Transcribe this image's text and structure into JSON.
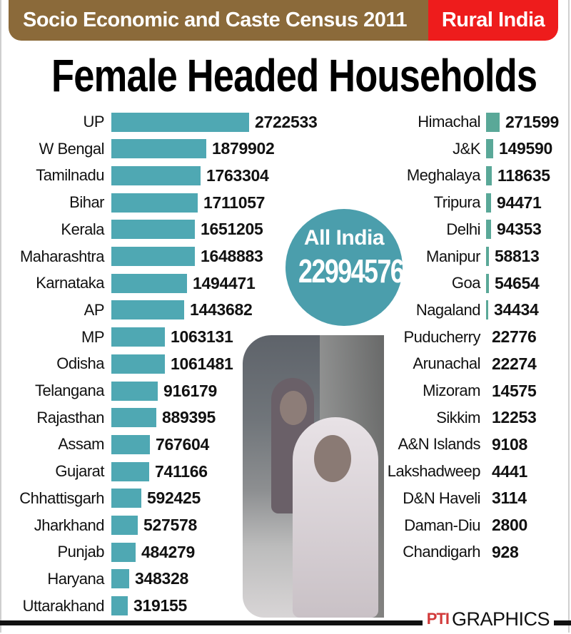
{
  "header": {
    "banner_left": "Socio Economic and Caste Census 2011",
    "banner_right": "Rural India",
    "title": "Female Headed Households"
  },
  "all_india": {
    "label": "All India",
    "value": "22994576"
  },
  "footer": {
    "logo": "PTI",
    "label": "GRAPHICS"
  },
  "colors": {
    "banner_brown": "#8b6a3a",
    "banner_red": "#ee1c1c",
    "bar_left": "#4fa8b3",
    "bar_right": "#5aa898",
    "circle": "#4b9eac"
  },
  "chart_data": {
    "type": "bar",
    "title": "Female Headed Households",
    "subtitle": "Socio Economic and Caste Census 2011 - Rural India",
    "xlabel": "",
    "ylabel": "",
    "orientation": "horizontal",
    "total": {
      "label": "All India",
      "value": 22994576
    },
    "categories": [
      "UP",
      "W Bengal",
      "Tamilnadu",
      "Bihar",
      "Kerala",
      "Maharashtra",
      "Karnataka",
      "AP",
      "MP",
      "Odisha",
      "Telangana",
      "Rajasthan",
      "Assam",
      "Gujarat",
      "Chhattisgarh",
      "Jharkhand",
      "Punjab",
      "Haryana",
      "Uttarakhand",
      "Himachal",
      "J&K",
      "Meghalaya",
      "Tripura",
      "Delhi",
      "Manipur",
      "Goa",
      "Nagaland",
      "Puducherry",
      "Arunachal",
      "Mizoram",
      "Sikkim",
      "A&N Islands",
      "Lakshadweep",
      "D&N Haveli",
      "Daman-Diu",
      "Chandigarh"
    ],
    "values": [
      2722533,
      1879902,
      1763304,
      1711057,
      1651205,
      1648883,
      1494471,
      1443682,
      1063131,
      1061481,
      916179,
      889395,
      767604,
      741166,
      592425,
      527578,
      484279,
      348328,
      319155,
      271599,
      149590,
      118635,
      94471,
      94353,
      58813,
      54654,
      34434,
      22776,
      22274,
      14575,
      12253,
      9108,
      4441,
      3114,
      2800,
      928
    ]
  },
  "left_column": [
    {
      "label": "UP",
      "value": "2722533"
    },
    {
      "label": "W Bengal",
      "value": "1879902"
    },
    {
      "label": "Tamilnadu",
      "value": "1763304"
    },
    {
      "label": "Bihar",
      "value": "1711057"
    },
    {
      "label": "Kerala",
      "value": "1651205"
    },
    {
      "label": "Maharashtra",
      "value": "1648883"
    },
    {
      "label": "Karnataka",
      "value": "1494471"
    },
    {
      "label": "AP",
      "value": "1443682"
    },
    {
      "label": "MP",
      "value": "1063131"
    },
    {
      "label": "Odisha",
      "value": "1061481"
    },
    {
      "label": "Telangana",
      "value": "916179"
    },
    {
      "label": "Rajasthan",
      "value": "889395"
    },
    {
      "label": "Assam",
      "value": "767604"
    },
    {
      "label": "Gujarat",
      "value": "741166"
    },
    {
      "label": "Chhattisgarh",
      "value": "592425"
    },
    {
      "label": "Jharkhand",
      "value": "527578"
    },
    {
      "label": "Punjab",
      "value": "484279"
    },
    {
      "label": "Haryana",
      "value": "348328"
    },
    {
      "label": "Uttarakhand",
      "value": "319155"
    }
  ],
  "right_column": [
    {
      "label": "Himachal",
      "value": "271599"
    },
    {
      "label": "J&K",
      "value": "149590"
    },
    {
      "label": "Meghalaya",
      "value": "118635"
    },
    {
      "label": "Tripura",
      "value": "94471"
    },
    {
      "label": "Delhi",
      "value": "94353"
    },
    {
      "label": "Manipur",
      "value": "58813"
    },
    {
      "label": "Goa",
      "value": "54654"
    },
    {
      "label": "Nagaland",
      "value": "34434"
    },
    {
      "label": "Puducherry",
      "value": "22776"
    },
    {
      "label": "Arunachal",
      "value": "22274"
    },
    {
      "label": "Mizoram",
      "value": "14575"
    },
    {
      "label": "Sikkim",
      "value": "12253"
    },
    {
      "label": "A&N Islands",
      "value": "9108"
    },
    {
      "label": "Lakshadweep",
      "value": "4441"
    },
    {
      "label": "D&N Haveli",
      "value": "3114"
    },
    {
      "label": "Daman-Diu",
      "value": "2800"
    },
    {
      "label": "Chandigarh",
      "value": "928"
    }
  ]
}
